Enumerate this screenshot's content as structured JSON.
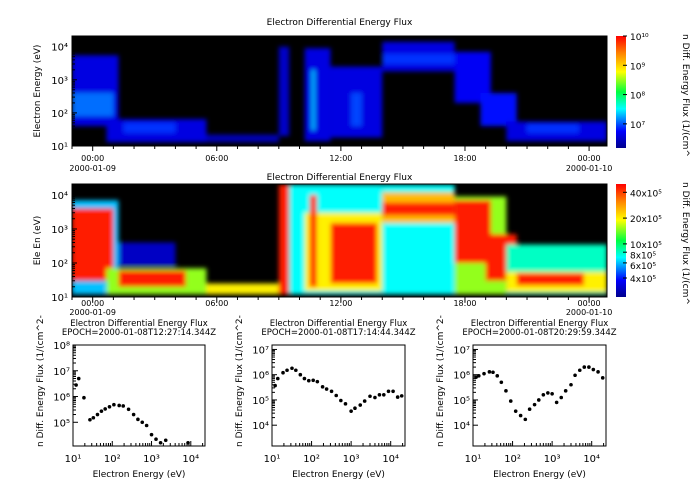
{
  "chart_data": [
    {
      "type": "heatmap",
      "title": "Electron Differential Energy Flux",
      "ylabel": "Electron Energy (eV)",
      "colorbar_label": "n Diff. Energy Flux (1/(cm^",
      "xlim": [
        "2000-01-08T23:00",
        "2000-01-10T00:52"
      ],
      "ylim": [
        10,
        21000
      ],
      "yscale": "log",
      "yticks": [
        {
          "v": 10,
          "label": "10¹"
        },
        {
          "v": 100,
          "label": "10²"
        },
        {
          "v": 1000,
          "label": "10³"
        },
        {
          "v": 10000,
          "label": "10⁴"
        }
      ],
      "xticks": [
        {
          "t": "2000-01-09T00:00",
          "label": "00:00",
          "date": "2000-01-09"
        },
        {
          "t": "2000-01-09T06:00",
          "label": "06:00",
          "date": ""
        },
        {
          "t": "2000-01-09T12:00",
          "label": "12:00",
          "date": ""
        },
        {
          "t": "2000-01-09T18:00",
          "label": "18:00",
          "date": ""
        },
        {
          "t": "2000-01-10T00:00",
          "label": "00:00",
          "date": "2000-01-10"
        }
      ],
      "color_range": [
        1500000.0,
        10000000000.0
      ],
      "color_scale": "log",
      "colorbar_ticks": [
        {
          "v": 10000000.0,
          "label": "10⁷"
        },
        {
          "v": 100000000.0,
          "label": "10⁸"
        },
        {
          "v": 1000000000.0,
          "label": "10⁹"
        },
        {
          "v": 10000000000.0,
          "label": "10¹⁰"
        }
      ],
      "regions": [
        {
          "t0": "2000-01-08T23:00",
          "t1": "2000-01-09T01:15",
          "e0": 40,
          "e1": 5500,
          "v": 4000000.0
        },
        {
          "t0": "2000-01-08T23:00",
          "t1": "2000-01-09T01:00",
          "e0": 80,
          "e1": 400,
          "v": 12000000.0
        },
        {
          "t0": "2000-01-09T00:40",
          "t1": "2000-01-09T05:30",
          "e0": 13,
          "e1": 65,
          "v": 4000000.0
        },
        {
          "t0": "2000-01-09T01:30",
          "t1": "2000-01-09T04:00",
          "e0": 25,
          "e1": 50,
          "v": 8000000.0
        },
        {
          "t0": "2000-01-09T05:30",
          "t1": "2000-01-09T09:00",
          "e0": 13,
          "e1": 22,
          "v": 2500000.0
        },
        {
          "t0": "2000-01-09T09:00",
          "t1": "2000-01-09T09:30",
          "e0": 20,
          "e1": 10000,
          "v": 3000000.0
        },
        {
          "t0": "2000-01-09T10:15",
          "t1": "2000-01-09T11:30",
          "e0": 14,
          "e1": 9000,
          "v": 4000000.0
        },
        {
          "t0": "2000-01-09T10:35",
          "t1": "2000-01-09T10:45",
          "e0": 30,
          "e1": 2000,
          "v": 20000000.0
        },
        {
          "t0": "2000-01-09T11:30",
          "t1": "2000-01-09T14:00",
          "e0": 18,
          "e1": 2500,
          "v": 4000000.0
        },
        {
          "t0": "2000-01-09T12:30",
          "t1": "2000-01-09T13:00",
          "e0": 40,
          "e1": 400,
          "v": 9000000.0
        },
        {
          "t0": "2000-01-09T14:00",
          "t1": "2000-01-09T17:30",
          "e0": 1800,
          "e1": 14000,
          "v": 4000000.0
        },
        {
          "t0": "2000-01-09T14:00",
          "t1": "2000-01-09T17:30",
          "e0": 3000,
          "e1": 6000,
          "v": 8000000.0
        },
        {
          "t0": "2000-01-09T17:30",
          "t1": "2000-01-09T19:15",
          "e0": 200,
          "e1": 7000,
          "v": 5000000.0
        },
        {
          "t0": "2000-01-09T18:45",
          "t1": "2000-01-09T20:30",
          "e0": 40,
          "e1": 400,
          "v": 6000000.0
        },
        {
          "t0": "2000-01-09T20:00",
          "t1": "2000-01-10T00:52",
          "e0": 14,
          "e1": 55,
          "v": 4000000.0
        },
        {
          "t0": "2000-01-09T21:00",
          "t1": "2000-01-09T23:30",
          "e0": 25,
          "e1": 45,
          "v": 8000000.0
        }
      ]
    },
    {
      "type": "heatmap",
      "title": "Electron Differential Energy Flux",
      "ylabel": "Ele En (eV)",
      "colorbar_label": "n Diff. Energy Flux (1/(cm^",
      "xlim": [
        "2000-01-08T23:00",
        "2000-01-10T00:52"
      ],
      "ylim": [
        10,
        21000
      ],
      "yscale": "log",
      "yticks": [
        {
          "v": 10,
          "label": "10¹"
        },
        {
          "v": 100,
          "label": "10²"
        },
        {
          "v": 1000,
          "label": "10³"
        },
        {
          "v": 10000,
          "label": "10⁴"
        }
      ],
      "xticks": [
        {
          "t": "2000-01-09T00:00",
          "label": "00:00",
          "date": "2000-01-09"
        },
        {
          "t": "2000-01-09T06:00",
          "label": "06:00",
          "date": ""
        },
        {
          "t": "2000-01-09T12:00",
          "label": "12:00",
          "date": ""
        },
        {
          "t": "2000-01-09T18:00",
          "label": "18:00",
          "date": ""
        },
        {
          "t": "2000-01-10T00:00",
          "label": "00:00",
          "date": "2000-01-10"
        }
      ],
      "color_range": [
        240000.0,
        5000000.0
      ],
      "color_scale": "log",
      "colorbar_ticks": [
        {
          "v": 4000000.0,
          "label": "40x10⁵"
        },
        {
          "v": 2000000.0,
          "label": "20x10⁵"
        },
        {
          "v": 1000000.0,
          "label": "10x10⁵"
        },
        {
          "v": 800000.0,
          "label": "8x10⁵"
        },
        {
          "v": 600000.0,
          "label": "6x10⁵"
        },
        {
          "v": 400000.0,
          "label": "4x10⁵"
        }
      ],
      "regions": [
        {
          "t0": "2000-01-08T23:00",
          "t1": "2000-01-09T01:15",
          "e0": 12,
          "e1": 7000,
          "v": 600000.0
        },
        {
          "t0": "2000-01-08T23:00",
          "t1": "2000-01-09T01:00",
          "e0": 30,
          "e1": 4000,
          "v": 4500000.0
        },
        {
          "t0": "2000-01-09T01:15",
          "t1": "2000-01-09T04:00",
          "e0": 80,
          "e1": 400,
          "v": 300000.0
        },
        {
          "t0": "2000-01-09T00:40",
          "t1": "2000-01-09T05:30",
          "e0": 12,
          "e1": 70,
          "v": 1500000.0
        },
        {
          "t0": "2000-01-09T01:15",
          "t1": "2000-01-09T04:30",
          "e0": 20,
          "e1": 60,
          "v": 4500000.0
        },
        {
          "t0": "2000-01-09T05:30",
          "t1": "2000-01-09T09:00",
          "e0": 12,
          "e1": 25,
          "v": 2000000.0
        },
        {
          "t0": "2000-01-09T09:00",
          "t1": "2000-01-09T09:30",
          "e0": 12,
          "e1": 20000,
          "v": 4500000.0
        },
        {
          "t0": "2000-01-09T09:30",
          "t1": "2000-01-09T14:00",
          "e0": 12,
          "e1": 20000,
          "v": 700000.0
        },
        {
          "t0": "2000-01-09T10:15",
          "t1": "2000-01-09T14:00",
          "e0": 15,
          "e1": 3000,
          "v": 2000000.0
        },
        {
          "t0": "2000-01-09T10:30",
          "t1": "2000-01-09T10:50",
          "e0": 20,
          "e1": 10000,
          "v": 4500000.0
        },
        {
          "t0": "2000-01-09T11:30",
          "t1": "2000-01-09T13:45",
          "e0": 25,
          "e1": 1500,
          "v": 4500000.0
        },
        {
          "t0": "2000-01-09T14:00",
          "t1": "2000-01-09T17:30",
          "e0": 12,
          "e1": 20000,
          "v": 700000.0
        },
        {
          "t0": "2000-01-09T14:00",
          "t1": "2000-01-09T17:30",
          "e0": 1500,
          "e1": 12000,
          "v": 2500000.0
        },
        {
          "t0": "2000-01-09T14:00",
          "t1": "2000-01-09T17:30",
          "e0": 2500,
          "e1": 6000,
          "v": 4500000.0
        },
        {
          "t0": "2000-01-09T17:30",
          "t1": "2000-01-09T20:00",
          "e0": 12,
          "e1": 9000,
          "v": 1500000.0
        },
        {
          "t0": "2000-01-09T17:30",
          "t1": "2000-01-09T19:15",
          "e0": 100,
          "e1": 7000,
          "v": 4500000.0
        },
        {
          "t0": "2000-01-09T19:00",
          "t1": "2000-01-09T20:30",
          "e0": 30,
          "e1": 700,
          "v": 4500000.0
        },
        {
          "t0": "2000-01-09T20:00",
          "t1": "2000-01-10T00:52",
          "e0": 12,
          "e1": 350,
          "v": 800000.0
        },
        {
          "t0": "2000-01-09T20:00",
          "t1": "2000-01-10T00:52",
          "e0": 14,
          "e1": 55,
          "v": 2000000.0
        },
        {
          "t0": "2000-01-09T20:30",
          "t1": "2000-01-09T23:45",
          "e0": 22,
          "e1": 50,
          "v": 4500000.0
        }
      ]
    },
    {
      "type": "scatter",
      "title": "Electron Differential Energy Flux",
      "subtitle": "EPOCH=2000-01-08T12:27:14.344Z",
      "xlabel": "Electron Energy (eV)",
      "ylabel": "n Diff. Energy Flux (1/(cm^2-",
      "xscale": "log",
      "yscale": "log",
      "xlim": [
        10,
        23000
      ],
      "ylim": [
        12000,
        100000000.0
      ],
      "xticks": [
        {
          "v": 10,
          "label": "10¹"
        },
        {
          "v": 100,
          "label": "10²"
        },
        {
          "v": 1000,
          "label": "10³"
        },
        {
          "v": 10000,
          "label": "10⁴"
        }
      ],
      "yticks": [
        {
          "v": 100000.0,
          "label": "10⁵"
        },
        {
          "v": 1000000.0,
          "label": "10⁶"
        },
        {
          "v": 10000000.0,
          "label": "10⁷"
        },
        {
          "v": 100000000.0,
          "label": "10⁸"
        }
      ],
      "x": [
        12,
        14,
        19,
        27,
        33,
        42,
        53,
        66,
        85,
        110,
        150,
        190,
        260,
        350,
        450,
        580,
        750,
        1000,
        1300,
        1700,
        2300,
        8500
      ],
      "y": [
        2800000.0,
        5000000.0,
        900000.0,
        125000.0,
        150000.0,
        200000.0,
        270000.0,
        330000.0,
        400000.0,
        480000.0,
        450000.0,
        430000.0,
        320000.0,
        200000.0,
        130000.0,
        100000.0,
        75000.0,
        33000.0,
        22000.0,
        16000.0,
        20000.0,
        16000.0
      ]
    },
    {
      "type": "scatter",
      "title": "Electron Differential Energy Flux",
      "subtitle": "EPOCH=2000-01-08T17:14:44.344Z",
      "xlabel": "Electron Energy (eV)",
      "ylabel": "n Diff. Energy Flux (1/(cm^2-",
      "xscale": "log",
      "yscale": "log",
      "xlim": [
        10,
        23000
      ],
      "ylim": [
        1500,
        15000000.0
      ],
      "xticks": [
        {
          "v": 10,
          "label": "10¹"
        },
        {
          "v": 100,
          "label": "10²"
        },
        {
          "v": 1000,
          "label": "10³"
        },
        {
          "v": 10000,
          "label": "10⁴"
        }
      ],
      "yticks": [
        {
          "v": 10000.0,
          "label": "10⁴"
        },
        {
          "v": 100000.0,
          "label": "10⁵"
        },
        {
          "v": 1000000.0,
          "label": "10⁶"
        },
        {
          "v": 10000000.0,
          "label": "10⁷"
        }
      ],
      "x": [
        12,
        14,
        19,
        24,
        32,
        40,
        52,
        66,
        85,
        110,
        140,
        190,
        240,
        320,
        420,
        550,
        720,
        1000,
        1250,
        1700,
        2200,
        3000,
        4000,
        5200,
        6700,
        8800,
        11500,
        15000,
        19000
      ],
      "y": [
        370000.0,
        700000.0,
        1200000.0,
        1500000.0,
        1800000.0,
        1500000.0,
        1000000.0,
        700000.0,
        580000.0,
        600000.0,
        530000.0,
        330000.0,
        270000.0,
        220000.0,
        150000.0,
        95000.0,
        70000.0,
        36000.0,
        47000.0,
        63000.0,
        90000.0,
        140000.0,
        125000.0,
        160000.0,
        160000.0,
        220000.0,
        220000.0,
        130000.0,
        145000.0
      ]
    },
    {
      "type": "scatter",
      "title": "Electron Differential Energy Flux",
      "subtitle": "EPOCH=2000-01-08T20:29:59.344Z",
      "xlabel": "Electron Energy (eV)",
      "ylabel": "n Diff. Energy Flux (1/(cm^2-",
      "xscale": "log",
      "yscale": "log",
      "xlim": [
        10,
        23000
      ],
      "ylim": [
        1500,
        15000000.0
      ],
      "xticks": [
        {
          "v": 10,
          "label": "10¹"
        },
        {
          "v": 100,
          "label": "10²"
        },
        {
          "v": 1000,
          "label": "10³"
        },
        {
          "v": 10000,
          "label": "10⁴"
        }
      ],
      "yticks": [
        {
          "v": 10000.0,
          "label": "10⁴"
        },
        {
          "v": 100000.0,
          "label": "10⁵"
        },
        {
          "v": 1000000.0,
          "label": "10⁶"
        },
        {
          "v": 10000000.0,
          "label": "10⁷"
        }
      ],
      "x": [
        12,
        14,
        19,
        26,
        32,
        41,
        52,
        68,
        90,
        120,
        160,
        210,
        270,
        360,
        460,
        600,
        780,
        1000,
        1300,
        1700,
        2200,
        3000,
        3800,
        5000,
        6500,
        8500,
        11000,
        14500,
        19000
      ],
      "y": [
        800000.0,
        900000.0,
        1100000.0,
        1300000.0,
        1250000.0,
        900000.0,
        500000.0,
        230000.0,
        90000.0,
        36000.0,
        24000.0,
        17000.0,
        43000.0,
        65000.0,
        100000.0,
        160000.0,
        190000.0,
        175000.0,
        80000.0,
        125000.0,
        230000.0,
        400000.0,
        950000.0,
        1500000.0,
        2000000.0,
        2000000.0,
        1600000.0,
        1300000.0,
        750000.0
      ]
    }
  ]
}
